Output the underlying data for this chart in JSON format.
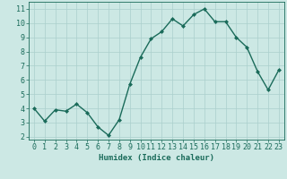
{
  "x": [
    0,
    1,
    2,
    3,
    4,
    5,
    6,
    7,
    8,
    9,
    10,
    11,
    12,
    13,
    14,
    15,
    16,
    17,
    18,
    19,
    20,
    21,
    22,
    23
  ],
  "y": [
    4.0,
    3.1,
    3.9,
    3.8,
    4.3,
    3.7,
    2.7,
    2.1,
    3.2,
    5.7,
    7.6,
    8.9,
    9.4,
    10.3,
    9.8,
    10.6,
    11.0,
    10.1,
    10.1,
    9.0,
    8.3,
    6.6,
    5.3,
    6.7
  ],
  "line_color": "#1a6b5a",
  "marker": "D",
  "marker_size": 2,
  "bg_color": "#cce8e4",
  "grid_color": "#aacfcc",
  "xlabel": "Humidex (Indice chaleur)",
  "xlabel_fontsize": 6.5,
  "tick_fontsize": 6,
  "ylim": [
    1.8,
    11.5
  ],
  "xlim": [
    -0.5,
    23.5
  ],
  "yticks": [
    2,
    3,
    4,
    5,
    6,
    7,
    8,
    9,
    10,
    11
  ],
  "xticks": [
    0,
    1,
    2,
    3,
    4,
    5,
    6,
    7,
    8,
    9,
    10,
    11,
    12,
    13,
    14,
    15,
    16,
    17,
    18,
    19,
    20,
    21,
    22,
    23
  ],
  "axis_color": "#1a6b5a",
  "spine_color": "#1a6b5a",
  "linewidth": 1.0
}
